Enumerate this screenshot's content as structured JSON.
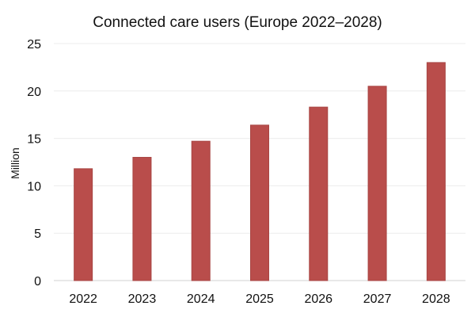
{
  "chart_data": {
    "type": "bar",
    "title": "Connected care users (Europe 2022–2028)",
    "xlabel": "",
    "ylabel": "Million",
    "categories": [
      "2022",
      "2023",
      "2024",
      "2025",
      "2026",
      "2027",
      "2028"
    ],
    "values": [
      11.8,
      13.0,
      14.7,
      16.4,
      18.3,
      20.5,
      23.0
    ],
    "ylim": [
      0,
      25
    ],
    "yticks": [
      "0",
      "5",
      "10",
      "15",
      "20",
      "25"
    ],
    "grid": true,
    "legend": "none",
    "colors": {
      "bar": "#b94d4b",
      "bar_edge": "#a84543"
    }
  }
}
